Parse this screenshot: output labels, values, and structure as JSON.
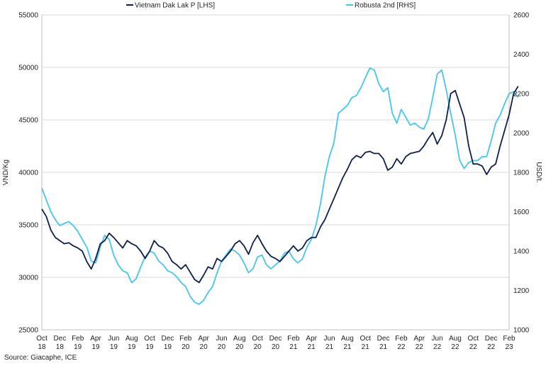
{
  "chart_data": {
    "type": "line",
    "title": "",
    "source": "Source: Giacaphe, ICE",
    "grid": true,
    "legend_position": "top",
    "x_ticks": [
      [
        "Oct",
        "18"
      ],
      [
        "Dec",
        "18"
      ],
      [
        "Feb",
        "19"
      ],
      [
        "Apr",
        "19"
      ],
      [
        "Jun",
        "19"
      ],
      [
        "Aug",
        "19"
      ],
      [
        "Oct",
        "19"
      ],
      [
        "Dec",
        "19"
      ],
      [
        "Feb",
        "20"
      ],
      [
        "Apr",
        "20"
      ],
      [
        "Jun",
        "20"
      ],
      [
        "Aug",
        "20"
      ],
      [
        "Oct",
        "20"
      ],
      [
        "Dec",
        "20"
      ],
      [
        "Feb",
        "21"
      ],
      [
        "Apr",
        "21"
      ],
      [
        "Jun",
        "21"
      ],
      [
        "Aug",
        "21"
      ],
      [
        "Oct",
        "21"
      ],
      [
        "Dec",
        "21"
      ],
      [
        "Feb",
        "22"
      ],
      [
        "Apr",
        "22"
      ],
      [
        "Jun",
        "22"
      ],
      [
        "Aug",
        "22"
      ],
      [
        "Oct",
        "22"
      ],
      [
        "Dec",
        "22"
      ],
      [
        "Feb",
        "23"
      ]
    ],
    "y_left": {
      "label": "VND/Kg",
      "min": 25000,
      "max": 55000,
      "ticks": [
        25000,
        30000,
        35000,
        40000,
        45000,
        50000,
        55000
      ]
    },
    "y_right": {
      "label": "USD/t.",
      "min": 1000,
      "max": 2600,
      "ticks": [
        1000,
        1200,
        1400,
        1600,
        1800,
        2000,
        2200,
        2400,
        2600
      ]
    },
    "series": [
      {
        "name": "Vietnam Dak Lak P [LHS]",
        "axis": "left",
        "color": "#0d1f4f",
        "x_month_index": [
          0,
          0.5,
          1,
          1.5,
          2,
          2.5,
          3,
          3.5,
          4,
          4.5,
          5,
          5.5,
          6,
          6.5,
          7,
          7.5,
          8,
          8.5,
          9,
          9.5,
          10,
          10.5,
          11,
          11.5,
          12,
          12.5,
          13,
          13.5,
          14,
          14.5,
          15,
          15.5,
          16,
          16.5,
          17,
          17.5,
          18,
          18.5,
          19,
          19.5,
          20,
          20.5,
          21,
          21.5,
          22,
          22.5,
          23,
          23.5,
          24,
          24.5,
          25,
          25.5,
          26,
          26.5,
          27,
          27.5,
          28,
          28.5,
          29,
          29.5,
          30,
          30.5,
          31,
          31.5,
          32,
          32.5,
          33,
          33.5,
          34,
          34.5,
          35,
          35.5,
          36,
          36.5,
          37,
          37.5,
          38,
          38.5,
          39,
          39.5,
          40,
          40.5,
          41,
          41.5,
          42,
          42.5,
          43,
          43.5,
          44,
          44.5,
          45,
          45.5,
          46,
          46.5,
          47,
          47.5,
          48,
          48.5,
          49,
          49.5,
          50,
          50.5,
          51,
          51.5,
          52,
          52.5,
          53
        ],
        "values": [
          36500,
          35800,
          34500,
          33800,
          33500,
          33200,
          33300,
          33000,
          32800,
          32500,
          31500,
          30800,
          31800,
          33200,
          33500,
          34200,
          33800,
          33300,
          32800,
          33500,
          33200,
          33000,
          32500,
          31800,
          32500,
          33500,
          33000,
          32800,
          32300,
          31500,
          31200,
          30800,
          31200,
          30500,
          29800,
          29500,
          30200,
          31000,
          30800,
          31800,
          31500,
          32000,
          32500,
          33200,
          33500,
          33000,
          32200,
          33300,
          34000,
          33200,
          32500,
          32000,
          31800,
          31500,
          32000,
          32500,
          33000,
          32500,
          32800,
          33500,
          33800,
          33800,
          34800,
          35500,
          36500,
          37500,
          38500,
          39500,
          40300,
          41200,
          41600,
          41400,
          41900,
          42000,
          41800,
          41800,
          41300,
          40200,
          40500,
          41300,
          40800,
          41500,
          41800,
          41900,
          42000,
          42500,
          43200,
          43800,
          42700,
          43500,
          45000,
          47500,
          47800,
          46500,
          45200,
          42500,
          40800,
          40800,
          40600,
          39800,
          40500,
          40800,
          42500,
          44000,
          45500,
          47500,
          48200
        ]
      },
      {
        "name": "Robusta 2nd [RHS]",
        "axis": "right",
        "color": "#45c5ee",
        "x_month_index": [
          0,
          0.5,
          1,
          1.5,
          2,
          2.5,
          3,
          3.5,
          4,
          4.5,
          5,
          5.5,
          6,
          6.5,
          7,
          7.5,
          8,
          8.5,
          9,
          9.5,
          10,
          10.5,
          11,
          11.5,
          12,
          12.5,
          13,
          13.5,
          14,
          14.5,
          15,
          15.5,
          16,
          16.5,
          17,
          17.5,
          18,
          18.5,
          19,
          19.5,
          20,
          20.5,
          21,
          21.5,
          22,
          22.5,
          23,
          23.5,
          24,
          24.5,
          25,
          25.5,
          26,
          26.5,
          27,
          27.5,
          28,
          28.5,
          29,
          29.5,
          30,
          30.5,
          31,
          31.5,
          32,
          32.5,
          33,
          33.5,
          34,
          34.5,
          35,
          35.5,
          36,
          36.5,
          37,
          37.5,
          38,
          38.5,
          39,
          39.5,
          40,
          40.5,
          41,
          41.5,
          42,
          42.5,
          43,
          43.5,
          44,
          44.5,
          45,
          45.5,
          46,
          46.5,
          47,
          47.5,
          48,
          48.5,
          49,
          49.5,
          50,
          50.5,
          51,
          51.5,
          52,
          52.5,
          53
        ],
        "values": [
          1720,
          1660,
          1600,
          1560,
          1530,
          1540,
          1550,
          1530,
          1500,
          1460,
          1420,
          1350,
          1340,
          1420,
          1480,
          1460,
          1380,
          1330,
          1300,
          1290,
          1240,
          1260,
          1320,
          1370,
          1400,
          1390,
          1350,
          1330,
          1300,
          1290,
          1270,
          1240,
          1220,
          1170,
          1140,
          1130,
          1150,
          1190,
          1220,
          1290,
          1350,
          1380,
          1410,
          1400,
          1380,
          1340,
          1290,
          1310,
          1370,
          1380,
          1330,
          1310,
          1330,
          1350,
          1390,
          1400,
          1360,
          1340,
          1360,
          1420,
          1460,
          1530,
          1640,
          1780,
          1880,
          1950,
          2100,
          2120,
          2140,
          2180,
          2190,
          2230,
          2280,
          2330,
          2320,
          2250,
          2210,
          2230,
          2100,
          2050,
          2120,
          2080,
          2040,
          2050,
          2030,
          2020,
          2070,
          2180,
          2300,
          2320,
          2220,
          2100,
          1990,
          1860,
          1820,
          1850,
          1860,
          1860,
          1880,
          1880,
          1960,
          2050,
          2090,
          2150,
          2200,
          2210,
          2180
        ]
      }
    ]
  }
}
